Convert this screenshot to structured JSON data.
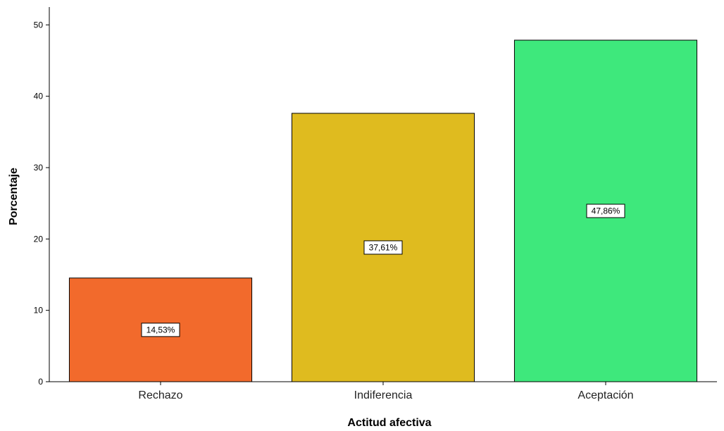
{
  "chart_data": {
    "type": "bar",
    "categories": [
      "Rechazo",
      "Indiferencia",
      "Aceptación"
    ],
    "values": [
      14.53,
      37.61,
      47.86
    ],
    "data_labels": [
      "14,53%",
      "37,61%",
      "47,86%"
    ],
    "colors": [
      "#f26a2c",
      "#dfbb1f",
      "#3ee87c"
    ],
    "xlabel": "Actitud afectiva",
    "ylabel": "Porcentaje",
    "ylim": [
      0,
      52.5
    ],
    "yticks": [
      0,
      10,
      20,
      30,
      40,
      50
    ],
    "grid": false
  }
}
